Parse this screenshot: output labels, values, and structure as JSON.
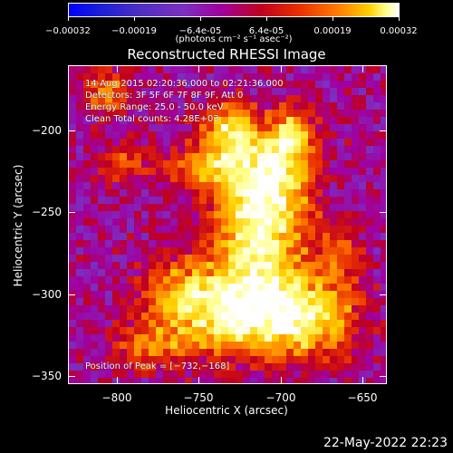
{
  "chart_data": {
    "type": "heatmap",
    "title": "Reconstructed RHESSI Image",
    "xlabel": "Heliocentric X (arcsec)",
    "ylabel": "Heliocentric Y (arcsec)",
    "xlim": [
      -830,
      -635
    ],
    "ylim": [
      -355,
      -160
    ],
    "x_ticks": [
      -800,
      -750,
      -700,
      -650
    ],
    "y_ticks": [
      -200,
      -250,
      -300,
      -350
    ],
    "x_tick_labels": [
      "−800",
      "−750",
      "−700",
      "−650"
    ],
    "y_tick_labels": [
      "−200",
      "−250",
      "−300",
      "−350"
    ],
    "colorbar": {
      "tick_labels": [
        "−0.00032",
        "−0.00019",
        "−6.4e-05",
        "6.4e-05",
        "0.00019",
        "0.00032"
      ],
      "tick_values": [
        -0.00032,
        -0.00019,
        -6.4e-05,
        6.4e-05,
        0.00019,
        0.00032
      ],
      "unit": "(photons cm⁻² s⁻¹ asec⁻²)",
      "range": [
        -0.00032,
        0.00032
      ],
      "palette": [
        "#0000ff",
        "#1e1fd6",
        "#4f2fc2",
        "#7c2fc0",
        "#a000a0",
        "#c00020",
        "#e83000",
        "#ff8000",
        "#ffcf00",
        "#ffff88",
        "#ffffff"
      ]
    },
    "annotations": {
      "time_range": "14-Aug-2015 02:20:36.000 to 02:21:36.000",
      "detectors": "Detectors: 3F 5F 6F 7F 8F 9F, Att 0",
      "energy_range": "Energy Range: 25.0 - 50.0 keV",
      "clean_total": "Clean      Total counts: 4.28E+03",
      "peak_position": "Position of Peak = [−732,−168]"
    }
  },
  "footer": {
    "timestamp": "22-May-2022 22:23"
  }
}
